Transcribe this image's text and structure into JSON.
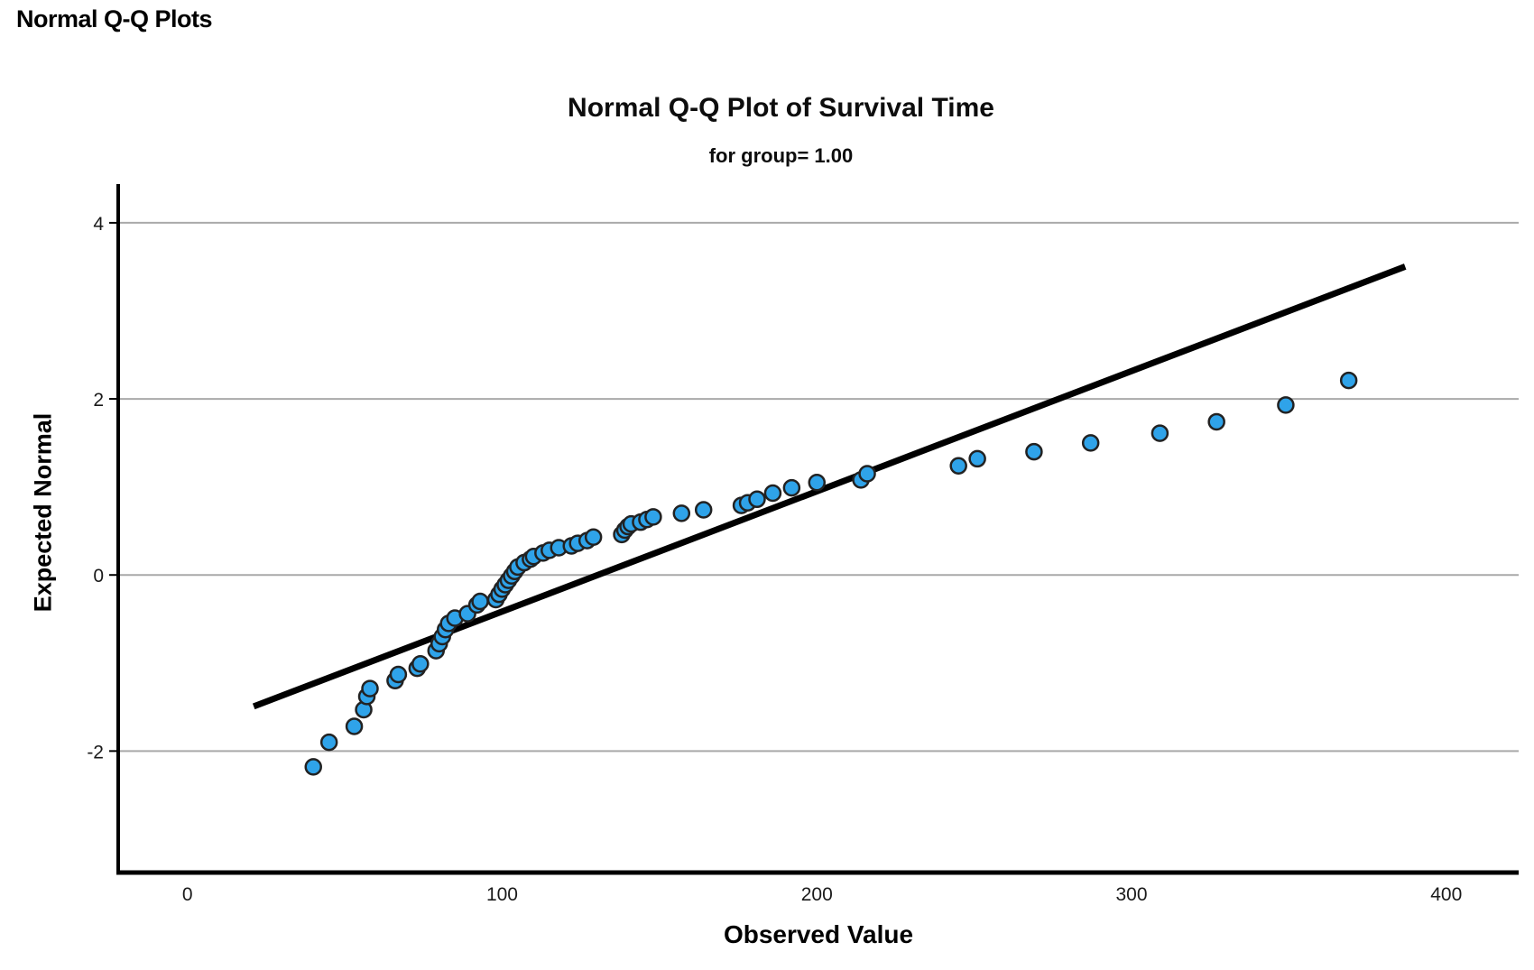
{
  "page": {
    "header": "Normal Q-Q Plots"
  },
  "chart": {
    "title": "Normal Q-Q Plot of Survival Time",
    "subtitle": "for group= 1.00",
    "x_axis_label": "Observed Value",
    "y_axis_label": "Expected Normal"
  },
  "chart_data": {
    "type": "scatter",
    "title": "Normal Q-Q Plot of Survival Time",
    "subtitle": "for group= 1.00",
    "xlabel": "Observed Value",
    "ylabel": "Expected Normal",
    "x_ticks": [
      0,
      100,
      200,
      300,
      400
    ],
    "y_ticks": [
      4,
      2,
      0,
      -2
    ],
    "xlim": [
      -22,
      423
    ],
    "ylim": [
      -3.38,
      4.44
    ],
    "grid": "horizontal-only",
    "legend": "none",
    "points": [
      [
        40,
        -2.18
      ],
      [
        45,
        -1.9
      ],
      [
        53,
        -1.72
      ],
      [
        56,
        -1.53
      ],
      [
        57,
        -1.38
      ],
      [
        58,
        -1.29
      ],
      [
        66,
        -1.2
      ],
      [
        67,
        -1.13
      ],
      [
        73,
        -1.06
      ],
      [
        74,
        -1.01
      ],
      [
        79,
        -0.86
      ],
      [
        80,
        -0.78
      ],
      [
        81,
        -0.7
      ],
      [
        82,
        -0.62
      ],
      [
        83,
        -0.55
      ],
      [
        85,
        -0.49
      ],
      [
        89,
        -0.44
      ],
      [
        92,
        -0.34
      ],
      [
        93,
        -0.3
      ],
      [
        98,
        -0.28
      ],
      [
        99,
        -0.22
      ],
      [
        100,
        -0.16
      ],
      [
        101,
        -0.11
      ],
      [
        102,
        -0.06
      ],
      [
        103,
        -0.01
      ],
      [
        104,
        0.04
      ],
      [
        105,
        0.09
      ],
      [
        107,
        0.14
      ],
      [
        109,
        0.18
      ],
      [
        110,
        0.21
      ],
      [
        113,
        0.25
      ],
      [
        115,
        0.28
      ],
      [
        118,
        0.31
      ],
      [
        122,
        0.33
      ],
      [
        124,
        0.36
      ],
      [
        127,
        0.39
      ],
      [
        129,
        0.43
      ],
      [
        138,
        0.46
      ],
      [
        139,
        0.51
      ],
      [
        140,
        0.55
      ],
      [
        141,
        0.58
      ],
      [
        144,
        0.6
      ],
      [
        146,
        0.63
      ],
      [
        148,
        0.66
      ],
      [
        157,
        0.7
      ],
      [
        164,
        0.74
      ],
      [
        176,
        0.79
      ],
      [
        178,
        0.82
      ],
      [
        181,
        0.86
      ],
      [
        186,
        0.93
      ],
      [
        192,
        0.99
      ],
      [
        200,
        1.05
      ],
      [
        214,
        1.08
      ],
      [
        216,
        1.15
      ],
      [
        245,
        1.24
      ],
      [
        251,
        1.32
      ],
      [
        269,
        1.4
      ],
      [
        287,
        1.5
      ],
      [
        309,
        1.61
      ],
      [
        327,
        1.74
      ],
      [
        349,
        1.93
      ],
      [
        369,
        2.21
      ]
    ],
    "fit_line": {
      "x1": 22,
      "y1": -1.48,
      "x2": 386,
      "y2": 3.49
    },
    "colors": {
      "point_fill": "#2FA3E9",
      "point_stroke": "#222222",
      "fit_line": "#000000",
      "gridline": "#A9A9A9",
      "axis": "#000000",
      "text": "#1a1a1a"
    }
  }
}
